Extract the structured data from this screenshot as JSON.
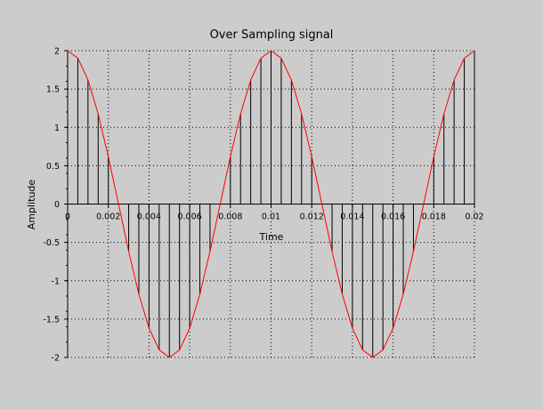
{
  "chart_data": {
    "type": "line",
    "title": "Over Sampling signal",
    "xlabel": "Time",
    "ylabel": "Amplitude",
    "xlim": [
      0,
      0.02
    ],
    "ylim": [
      -2,
      2
    ],
    "xticks": [
      "0",
      "0.002",
      "0.004",
      "0.006",
      "0.008",
      "0.01",
      "0.012",
      "0.014",
      "0.016",
      "0.018",
      "0.02"
    ],
    "yticks": [
      "2",
      "1.5",
      "1",
      "0.5",
      "0",
      "-0.5",
      "-1",
      "-1.5",
      "-2"
    ],
    "grid": true,
    "series": [
      {
        "style": "stem",
        "color": "#000000",
        "x": [
          0,
          0.0005,
          0.001,
          0.0015,
          0.002,
          0.0025,
          0.003,
          0.0035,
          0.004,
          0.0045,
          0.005,
          0.0055,
          0.006,
          0.0065,
          0.007,
          0.0075,
          0.008,
          0.0085,
          0.009,
          0.0095,
          0.01,
          0.0105,
          0.011,
          0.0115,
          0.012,
          0.0125,
          0.013,
          0.0135,
          0.014,
          0.0145,
          0.015,
          0.0155,
          0.016,
          0.0165,
          0.017,
          0.0175,
          0.018,
          0.0185,
          0.019,
          0.0195,
          0.02
        ],
        "y": [
          2.0,
          1.902,
          1.618,
          1.176,
          0.618,
          0.0,
          -0.618,
          -1.176,
          -1.618,
          -1.902,
          -2.0,
          -1.902,
          -1.618,
          -1.176,
          -0.618,
          0.0,
          0.618,
          1.176,
          1.618,
          1.902,
          2.0,
          1.902,
          1.618,
          1.176,
          0.618,
          0.0,
          -0.618,
          -1.176,
          -1.618,
          -1.902,
          -2.0,
          -1.902,
          -1.618,
          -1.176,
          -0.618,
          0.0,
          0.618,
          1.176,
          1.618,
          1.902,
          2.0
        ]
      },
      {
        "style": "line",
        "color": "#ff0000",
        "x": [
          0,
          0.0005,
          0.001,
          0.0015,
          0.002,
          0.0025,
          0.003,
          0.0035,
          0.004,
          0.0045,
          0.005,
          0.0055,
          0.006,
          0.0065,
          0.007,
          0.0075,
          0.008,
          0.0085,
          0.009,
          0.0095,
          0.01,
          0.0105,
          0.011,
          0.0115,
          0.012,
          0.0125,
          0.013,
          0.0135,
          0.014,
          0.0145,
          0.015,
          0.0155,
          0.016,
          0.0165,
          0.017,
          0.0175,
          0.018,
          0.0185,
          0.019,
          0.0195,
          0.02
        ],
        "y": [
          2.0,
          1.902,
          1.618,
          1.176,
          0.618,
          0.0,
          -0.618,
          -1.176,
          -1.618,
          -1.902,
          -2.0,
          -1.902,
          -1.618,
          -1.176,
          -0.618,
          0.0,
          0.618,
          1.176,
          1.618,
          1.902,
          2.0,
          1.902,
          1.618,
          1.176,
          0.618,
          0.0,
          -0.618,
          -1.176,
          -1.618,
          -1.902,
          -2.0,
          -1.902,
          -1.618,
          -1.176,
          -0.618,
          0.0,
          0.618,
          1.176,
          1.618,
          1.902,
          2.0
        ]
      }
    ]
  }
}
